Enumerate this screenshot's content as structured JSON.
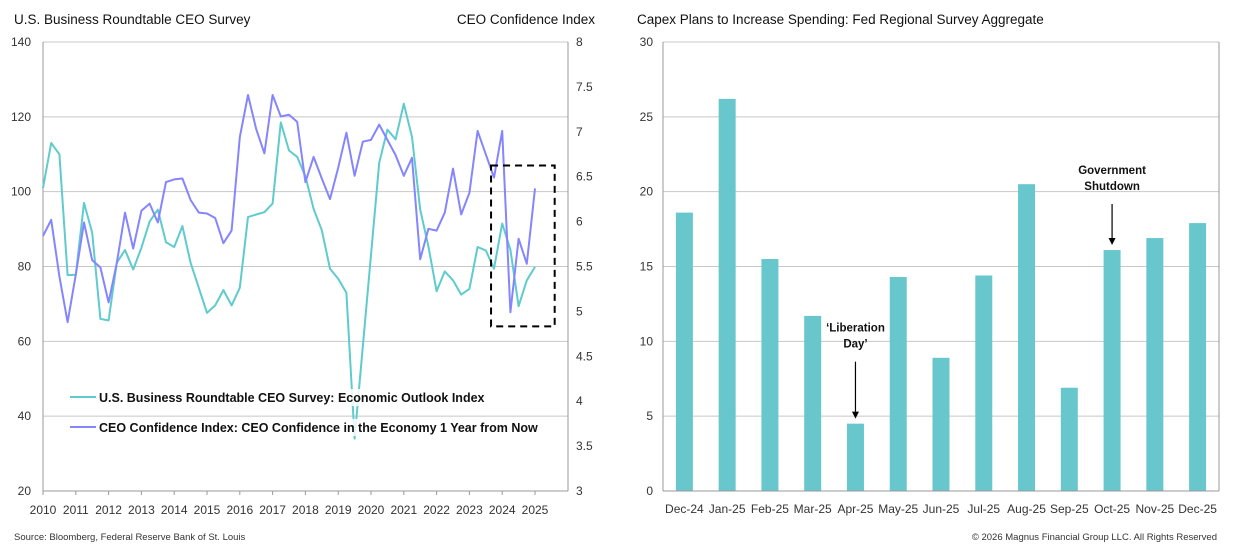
{
  "left_chart_title": "U.S. Business Roundtable CEO Survey",
  "right_axis_title": "CEO Confidence Index",
  "right_chart_title": "Capex Plans to Increase Spending: Fed Regional Survey Aggregate",
  "source": "Source: Bloomberg, Federal Reserve Bank of St. Louis",
  "copyright": "© 2026 Magnus Financial Group LLC. All Rights Reserved",
  "colors": {
    "teal": "#5fcbcc",
    "purple": "#8585ff",
    "bar": "#67c7cd",
    "grid": "#c8c8c8"
  },
  "chart_data": [
    {
      "type": "line",
      "title": "U.S. Business Roundtable CEO Survey",
      "ylim": [
        20,
        140
      ],
      "y2lim": [
        3,
        8
      ],
      "yticks": [
        "20",
        "40",
        "60",
        "80",
        "100",
        "120",
        "140"
      ],
      "y2ticks": [
        "3",
        "3.5",
        "4",
        "4.5",
        "5",
        "5.5",
        "6",
        "6.5",
        "7",
        "7.5",
        "8"
      ],
      "xticks": [
        "2010",
        "2011",
        "2012",
        "2013",
        "2014",
        "2015",
        "2016",
        "2017",
        "2018",
        "2019",
        "2020",
        "2021",
        "2022",
        "2023",
        "2024",
        "2025"
      ],
      "grid": true,
      "legend_placement": "bottom-left",
      "x": [
        "2010Q1",
        "2010Q2",
        "2010Q3",
        "2010Q4",
        "2011Q1",
        "2011Q2",
        "2011Q3",
        "2011Q4",
        "2012Q1",
        "2012Q2",
        "2012Q3",
        "2012Q4",
        "2013Q1",
        "2013Q2",
        "2013Q3",
        "2013Q4",
        "2014Q1",
        "2014Q2",
        "2014Q3",
        "2014Q4",
        "2015Q1",
        "2015Q2",
        "2015Q3",
        "2015Q4",
        "2016Q1",
        "2016Q2",
        "2016Q3",
        "2016Q4",
        "2017Q1",
        "2017Q2",
        "2017Q3",
        "2017Q4",
        "2018Q1",
        "2018Q2",
        "2018Q3",
        "2018Q4",
        "2019Q1",
        "2019Q2",
        "2019Q3",
        "2019Q4",
        "2020Q1",
        "2020Q2",
        "2020Q3",
        "2020Q4",
        "2021Q1",
        "2021Q2",
        "2021Q3",
        "2021Q4",
        "2022Q1",
        "2022Q2",
        "2022Q3",
        "2022Q4",
        "2023Q1",
        "2023Q2",
        "2023Q3",
        "2023Q4",
        "2024Q1",
        "2024Q2",
        "2024Q3",
        "2024Q4",
        "2025Q1"
      ],
      "series": [
        {
          "name": "U.S. Business Roundtable CEO Survey: Economic Outlook Index",
          "axis": "left",
          "color": "#5fcbcc",
          "values": [
            101,
            113,
            110,
            77.7,
            77.8,
            97,
            89,
            66,
            65.6,
            81,
            84.4,
            79.2,
            85,
            92,
            95.2,
            86.5,
            85.2,
            90.8,
            81,
            74.3,
            67.6,
            69.6,
            73.7,
            69.6,
            74.3,
            93.2,
            93.9,
            94.5,
            96.8,
            118.5,
            111,
            109.3,
            104.1,
            95.4,
            89.7,
            79.4,
            76.7,
            73,
            34,
            58.6,
            83.1,
            107.7,
            116.6,
            114,
            123.5,
            114.6,
            95.2,
            85.4,
            73.4,
            78.7,
            76.3,
            72.5,
            74,
            85.2,
            84.3,
            79.4,
            91.5,
            84.5,
            69.4,
            76.3,
            79.9
          ]
        },
        {
          "name": "CEO Confidence Index: CEO Confidence in the Economy 1 Year from Now",
          "axis": "right",
          "color": "#8585ff",
          "values": [
            5.84,
            6.02,
            5.39,
            4.88,
            5.41,
            5.99,
            5.57,
            5.49,
            5.1,
            5.54,
            6.1,
            5.7,
            6.12,
            6.2,
            5.99,
            6.44,
            6.47,
            6.48,
            6.24,
            6.1,
            6.09,
            6.04,
            5.76,
            5.9,
            6.94,
            7.41,
            7.03,
            6.76,
            7.41,
            7.17,
            7.19,
            7.11,
            6.44,
            6.72,
            6.48,
            6.25,
            6.6,
            6.99,
            6.51,
            6.89,
            6.91,
            7.08,
            6.91,
            6.74,
            6.51,
            6.71,
            5.58,
            5.92,
            5.9,
            6.1,
            6.59,
            6.08,
            6.32,
            7.01,
            6.75,
            6.49,
            7.01,
            4.99,
            5.81,
            5.53,
            6.37
          ]
        }
      ],
      "highlight_box": {
        "x_from": 2023.66,
        "x_to": 2025.6,
        "y_from": 64,
        "y_to": 107
      }
    },
    {
      "type": "bar",
      "title": "Capex Plans to Increase Spending: Fed Regional Survey Aggregate",
      "ylim": [
        0,
        30
      ],
      "yticks": [
        "0",
        "5",
        "10",
        "15",
        "20",
        "25",
        "30"
      ],
      "grid": true,
      "categories": [
        "Dec-24",
        "Jan-25",
        "Feb-25",
        "Mar-25",
        "Apr-25",
        "May-25",
        "Jun-25",
        "Jul-25",
        "Aug-25",
        "Sep-25",
        "Oct-25",
        "Nov-25",
        "Dec-25"
      ],
      "values": [
        18.6,
        26.2,
        15.5,
        11.7,
        4.5,
        14.3,
        8.9,
        14.4,
        20.5,
        6.9,
        16.1,
        16.9,
        17.9
      ],
      "annotations": [
        {
          "category": "Apr-25",
          "lines": [
            "‘Liberation",
            "Day’"
          ]
        },
        {
          "category": "Oct-25",
          "lines": [
            "Government",
            "Shutdown"
          ]
        }
      ]
    }
  ]
}
